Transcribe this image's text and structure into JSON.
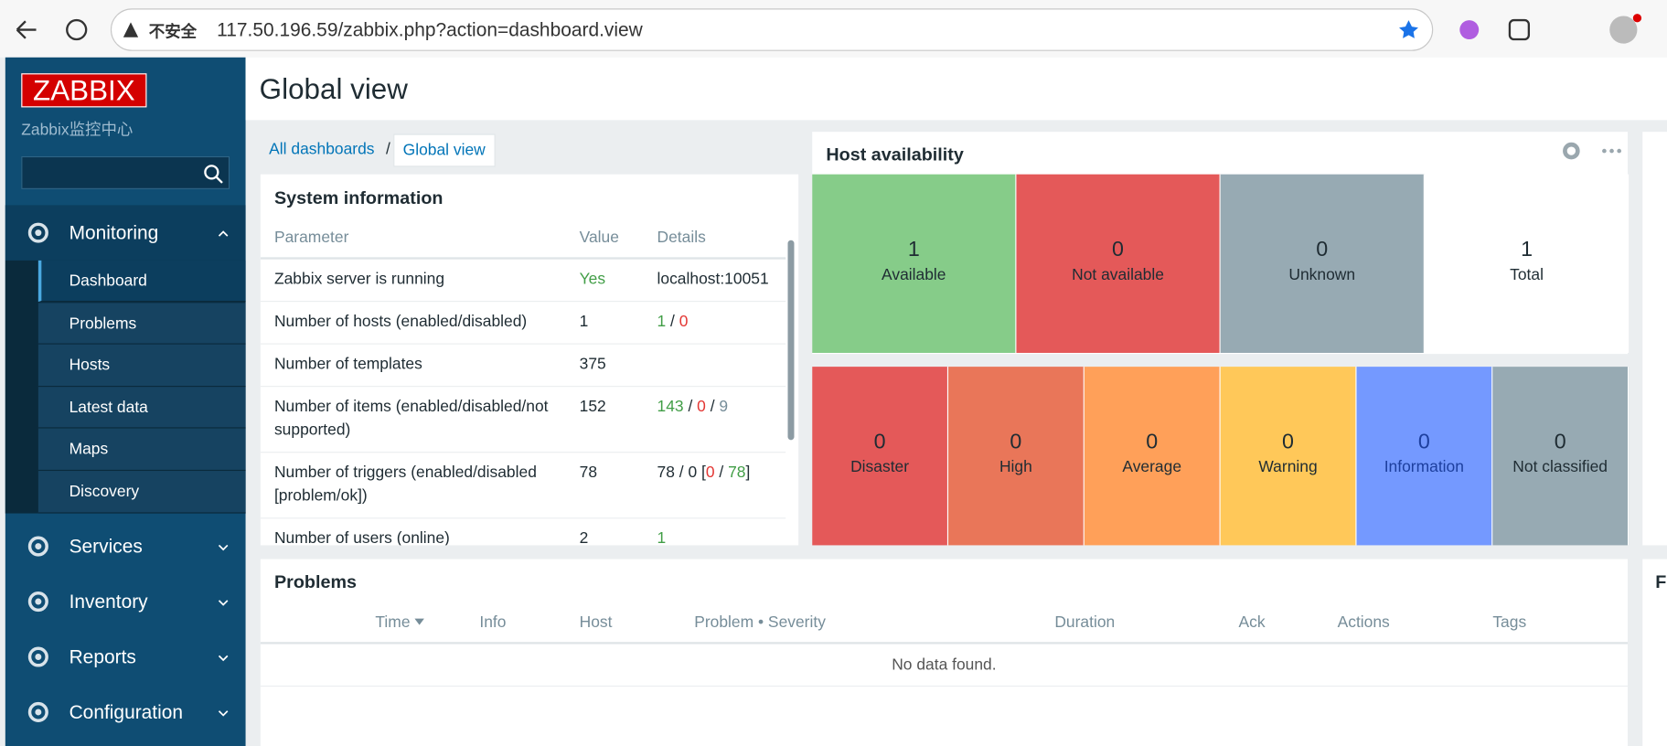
{
  "browser": {
    "security": "不安全",
    "url": "117.50.196.59/zabbix.php?action=dashboard.view"
  },
  "sidebar": {
    "logo": "ZABBIX",
    "subtitle": "Zabbix监控中心",
    "menu": [
      {
        "label": "Monitoring",
        "items": [
          "Dashboard",
          "Problems",
          "Hosts",
          "Latest data",
          "Maps",
          "Discovery"
        ]
      },
      {
        "label": "Services"
      },
      {
        "label": "Inventory"
      },
      {
        "label": "Reports"
      },
      {
        "label": "Configuration"
      }
    ]
  },
  "header": {
    "title": "Global view"
  },
  "breadcrumbs": [
    "All dashboards",
    "/",
    "Global view"
  ],
  "system_info": {
    "title": "System information",
    "columns": [
      "Parameter",
      "Value",
      "Details"
    ],
    "rows": [
      {
        "parameter": "Zabbix server is running",
        "value": "Yes",
        "value_tone": "green",
        "details": [
          {
            "text": "localhost:10051",
            "tone": "plain"
          }
        ]
      },
      {
        "parameter": "Number of hosts (enabled/disabled)",
        "value": "1",
        "details": [
          {
            "text": "1",
            "tone": "green"
          },
          {
            "text": " / ",
            "tone": "plain"
          },
          {
            "text": "0",
            "tone": "red"
          }
        ]
      },
      {
        "parameter": "Number of templates",
        "value": "375"
      },
      {
        "parameter": "Number of items (enabled/disabled/not supported)",
        "value": "152",
        "details": [
          {
            "text": "143",
            "tone": "green"
          },
          {
            "text": " / ",
            "tone": "plain"
          },
          {
            "text": "0",
            "tone": "red"
          },
          {
            "text": " / ",
            "tone": "plain"
          },
          {
            "text": "9",
            "tone": "gray"
          }
        ]
      },
      {
        "parameter": "Number of triggers (enabled/disabled [problem/ok])",
        "value": "78",
        "details": [
          {
            "text": "78 / 0 [",
            "tone": "plain"
          },
          {
            "text": "0",
            "tone": "red"
          },
          {
            "text": " / ",
            "tone": "plain"
          },
          {
            "text": "78",
            "tone": "green"
          },
          {
            "text": "]",
            "tone": "plain"
          }
        ]
      },
      {
        "parameter": "Number of users (online)",
        "value": "2",
        "details": [
          {
            "text": "1",
            "tone": "green"
          }
        ]
      }
    ]
  },
  "host_availability": {
    "title": "Host availability",
    "cells": [
      {
        "value": "1",
        "label": "Available",
        "color": "#86cc89"
      },
      {
        "value": "0",
        "label": "Not available",
        "color": "#e45959"
      },
      {
        "value": "0",
        "label": "Unknown",
        "color": "#97aab3"
      },
      {
        "value": "1",
        "label": "Total",
        "color": "#ffffff"
      }
    ]
  },
  "problems_by_severity": {
    "cells": [
      {
        "value": "0",
        "label": "Disaster",
        "color": "#e45959"
      },
      {
        "value": "0",
        "label": "High",
        "color": "#e97659"
      },
      {
        "value": "0",
        "label": "Average",
        "color": "#ffa059"
      },
      {
        "value": "0",
        "label": "Warning",
        "color": "#ffc859"
      },
      {
        "value": "0",
        "label": "Information",
        "color": "#7499ff"
      },
      {
        "value": "0",
        "label": "Not classified",
        "color": "#97aab3"
      }
    ]
  },
  "problems": {
    "title": "Problems",
    "columns": [
      "Time",
      "Info",
      "Host",
      "Problem • Severity",
      "Duration",
      "Ack",
      "Actions",
      "Tags"
    ],
    "empty": "No data found."
  },
  "right_widget_title": "F"
}
